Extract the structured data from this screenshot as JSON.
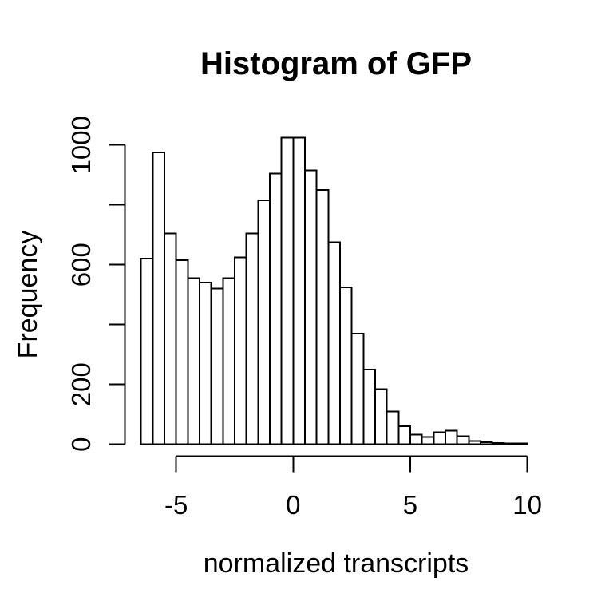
{
  "chart_data": {
    "type": "bar",
    "subtype": "histogram",
    "title": "Histogram of GFP",
    "xlabel": "normalized transcripts",
    "ylabel": "Frequency",
    "bin_start": -6.5,
    "bin_width": 0.5,
    "counts": [
      620,
      975,
      705,
      615,
      555,
      540,
      520,
      555,
      625,
      705,
      815,
      905,
      1025,
      1025,
      915,
      850,
      675,
      525,
      370,
      250,
      185,
      110,
      60,
      33,
      25,
      40,
      46,
      27,
      11,
      7,
      4,
      3,
      3
    ],
    "x_ticks": [
      -5,
      0,
      5,
      10
    ],
    "x_tick_labels": [
      "-5",
      "0",
      "5",
      "10"
    ],
    "y_ticks": [
      0,
      200,
      400,
      600,
      800,
      1000
    ],
    "y_tick_labels": [
      "0",
      "200",
      "",
      "600",
      "",
      "1000"
    ],
    "xlim": [
      -6.5,
      10
    ],
    "ylim": [
      0,
      1000
    ],
    "grid": "off",
    "legend": "none",
    "colors": {
      "background": "#ffffff",
      "bar_fill": "#ffffff",
      "bar_stroke": "#000000",
      "axis": "#000000",
      "text": "#000000"
    }
  }
}
